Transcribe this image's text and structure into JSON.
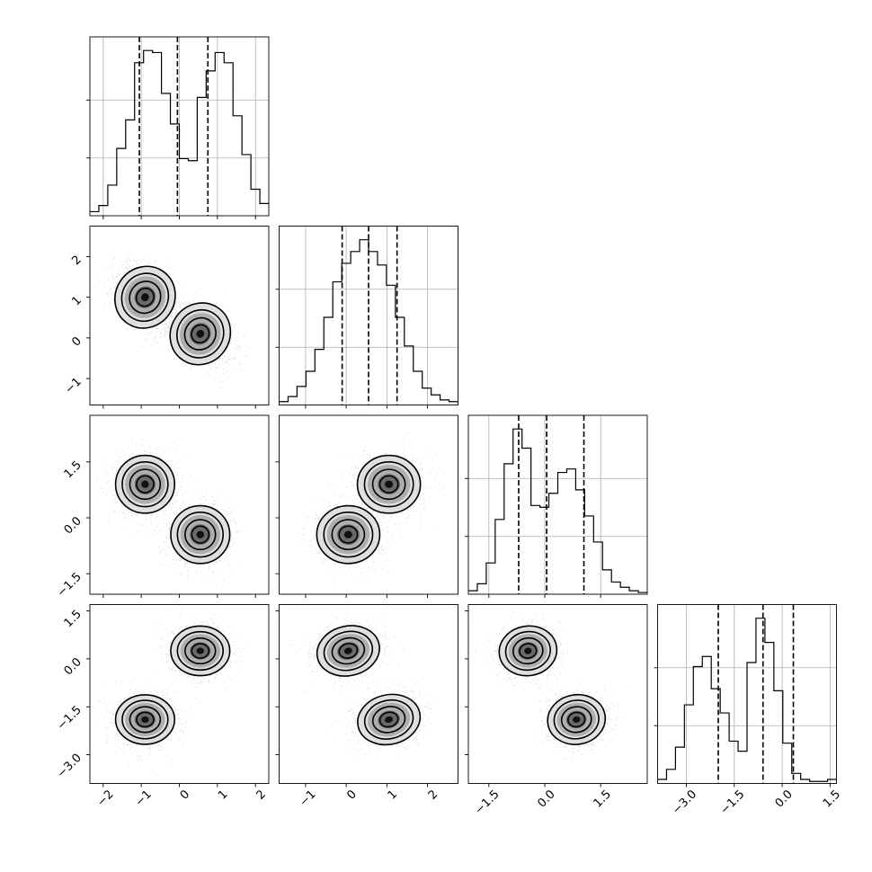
{
  "chart_data": {
    "type": "corner",
    "n_params": 4,
    "params": [
      {
        "range": [
          -2.35,
          2.35
        ],
        "ticks": [
          -2,
          -1,
          0,
          1,
          2
        ],
        "tick_labels": [
          "−2",
          "−1",
          "0",
          "1",
          "2"
        ],
        "quantiles": [
          -1.05,
          -0.05,
          0.75
        ],
        "hist": {
          "edges_start": -2.35,
          "bin_width": 0.235,
          "counts": [
            0.02,
            0.05,
            0.15,
            0.33,
            0.47,
            0.75,
            0.81,
            0.8,
            0.6,
            0.45,
            0.28,
            0.27,
            0.58,
            0.71,
            0.8,
            0.75,
            0.49,
            0.3,
            0.13,
            0.06
          ]
        }
      },
      {
        "range": [
          -1.65,
          2.75
        ],
        "ticks": [
          -1,
          0,
          1,
          2
        ],
        "tick_labels": [
          "−1",
          "0",
          "1",
          "2"
        ],
        "quantiles": [
          -0.1,
          0.55,
          1.25
        ],
        "hist": {
          "edges_start": -1.65,
          "bin_width": 0.22,
          "counts": [
            0.02,
            0.05,
            0.11,
            0.2,
            0.33,
            0.52,
            0.73,
            0.84,
            0.91,
            0.98,
            0.91,
            0.83,
            0.71,
            0.52,
            0.35,
            0.2,
            0.1,
            0.06,
            0.03,
            0.02
          ]
        }
      },
      {
        "range": [
          -2.05,
          2.75
        ],
        "ticks": [
          -1.5,
          0.0,
          1.5
        ],
        "tick_labels": [
          "−1.5",
          "0.0",
          "1.5"
        ],
        "quantiles": [
          -0.7,
          0.05,
          1.05
        ],
        "hist": {
          "edges_start": -2.05,
          "bin_width": 0.24,
          "counts": [
            0.02,
            0.06,
            0.18,
            0.43,
            0.75,
            0.95,
            0.84,
            0.51,
            0.5,
            0.58,
            0.7,
            0.72,
            0.6,
            0.45,
            0.3,
            0.14,
            0.07,
            0.04,
            0.02,
            0.01
          ]
        }
      },
      {
        "range": [
          -3.9,
          1.7
        ],
        "ticks": [
          -3.0,
          -1.5,
          0.0,
          1.5
        ],
        "tick_labels": [
          "−3.0",
          "−1.5",
          "0.0",
          "1.5"
        ],
        "quantiles": [
          -2.0,
          -0.6,
          0.35
        ],
        "hist": {
          "edges_start": -3.9,
          "bin_width": 0.28,
          "counts": [
            0.02,
            0.07,
            0.18,
            0.39,
            0.58,
            0.63,
            0.47,
            0.35,
            0.21,
            0.16,
            0.6,
            0.82,
            0.7,
            0.46,
            0.2,
            0.05,
            0.02,
            0.01,
            0.01,
            0.02
          ]
        }
      }
    ],
    "pairs": [
      {
        "row": 1,
        "col": 0,
        "modes": [
          {
            "x": -0.9,
            "y": 1.0,
            "w": 0.5
          },
          {
            "x": 0.55,
            "y": 0.1,
            "w": 0.5
          }
        ],
        "corr": -0.4
      },
      {
        "row": 2,
        "col": 0,
        "modes": [
          {
            "x": -0.9,
            "y": 0.9,
            "w": 0.5
          },
          {
            "x": 0.55,
            "y": -0.45,
            "w": 0.5
          }
        ],
        "corr": 0.0
      },
      {
        "row": 2,
        "col": 1,
        "modes": [
          {
            "x": 0.05,
            "y": -0.45,
            "w": 0.5
          },
          {
            "x": 1.05,
            "y": 0.9,
            "w": 0.5
          }
        ],
        "corr": 0.0
      },
      {
        "row": 3,
        "col": 0,
        "modes": [
          {
            "x": -0.9,
            "y": -1.9,
            "w": 0.5
          },
          {
            "x": 0.55,
            "y": 0.25,
            "w": 0.5
          }
        ],
        "corr": 0.0
      },
      {
        "row": 3,
        "col": 1,
        "modes": [
          {
            "x": 0.05,
            "y": 0.25,
            "w": 0.5
          },
          {
            "x": 1.05,
            "y": -1.9,
            "w": 0.5
          }
        ],
        "corr": 0.15
      },
      {
        "row": 3,
        "col": 2,
        "modes": [
          {
            "x": -0.45,
            "y": 0.25,
            "w": 0.5
          },
          {
            "x": 0.85,
            "y": -1.9,
            "w": 0.5
          }
        ],
        "corr": 0.1
      }
    ]
  }
}
